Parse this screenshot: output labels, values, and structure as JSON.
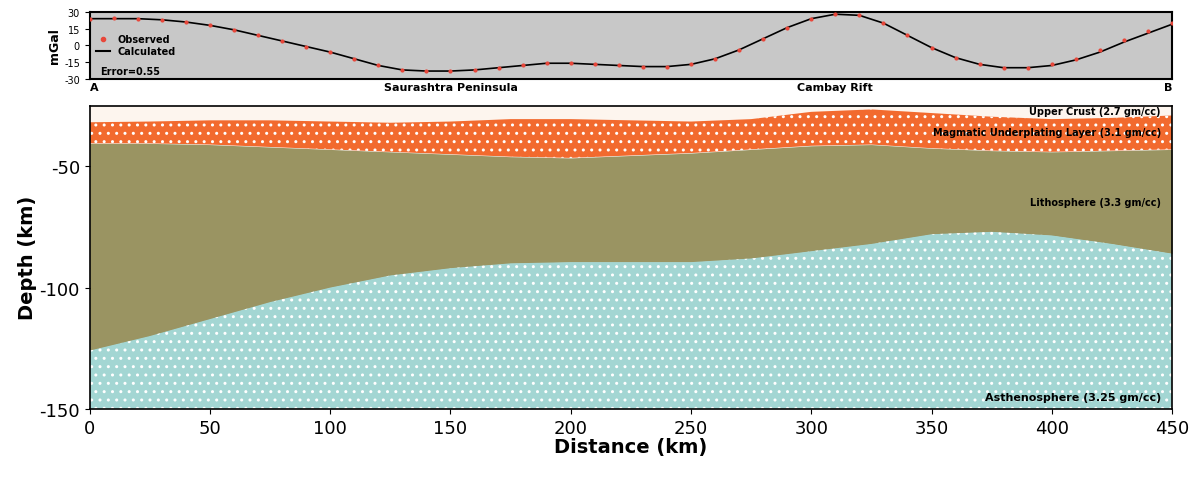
{
  "chart_data": [
    {
      "type": "line",
      "ylabel": "mGal",
      "xlim": [
        0,
        450
      ],
      "ylim": [
        -30,
        30
      ],
      "yticks": [
        -30,
        -15,
        0,
        15,
        30
      ],
      "tick_labels": "y",
      "legend": "center left",
      "x": [
        0,
        10,
        20,
        30,
        40,
        50,
        60,
        70,
        80,
        90,
        100,
        110,
        120,
        130,
        140,
        150,
        160,
        170,
        180,
        190,
        200,
        210,
        220,
        230,
        240,
        250,
        260,
        270,
        280,
        290,
        300,
        310,
        320,
        330,
        340,
        350,
        360,
        370,
        380,
        390,
        400,
        410,
        420,
        430,
        440,
        450
      ],
      "series": [
        {
          "name": "Observed",
          "type": "scatter",
          "color": "#e8473a",
          "marker": "o",
          "values": [
            24,
            24.5,
            24,
            23,
            21,
            18,
            14,
            9,
            4,
            -1,
            -6,
            -12,
            -18,
            -22,
            -23,
            -23,
            -22,
            -20,
            -18,
            -16,
            -16,
            -17,
            -18,
            -19,
            -19,
            -17,
            -12,
            -4,
            6,
            16,
            24,
            28,
            27,
            20,
            9,
            -2,
            -11,
            -17,
            -20,
            -20,
            -17,
            -12,
            -4,
            5,
            13,
            20
          ]
        },
        {
          "name": "Calculated",
          "type": "line",
          "color": "#000000",
          "line_style": "solid",
          "values": [
            24,
            24,
            24,
            23,
            21,
            18,
            14,
            9,
            4,
            -1,
            -6,
            -12,
            -18,
            -22,
            -23,
            -23,
            -22,
            -20,
            -18,
            -16,
            -16,
            -17,
            -18,
            -19,
            -19,
            -17,
            -12,
            -4,
            6,
            16,
            24,
            28,
            27,
            20,
            9,
            -2,
            -11,
            -17,
            -20,
            -20,
            -18,
            -13,
            -6,
            3,
            11,
            19
          ]
        }
      ],
      "annotations": [
        "Error=0.55"
      ],
      "profile_labels": [
        {
          "x": 0,
          "text": "A"
        },
        {
          "x": 150,
          "text": "Saurashtra Peninsula"
        },
        {
          "x": 310,
          "text": "Cambay Rift"
        },
        {
          "x": 450,
          "text": "B"
        }
      ]
    },
    {
      "type": "area",
      "xlabel": "Distance (km)",
      "ylabel": "Depth (km)",
      "xlim": [
        0,
        450
      ],
      "ylim": [
        -150,
        -25
      ],
      "xticks": [
        0,
        50,
        100,
        150,
        200,
        250,
        300,
        350,
        400,
        450
      ],
      "yticks": [
        -150,
        -100,
        -50
      ],
      "x": [
        0,
        25,
        50,
        75,
        100,
        125,
        150,
        175,
        200,
        225,
        250,
        275,
        300,
        325,
        350,
        375,
        400,
        425,
        450
      ],
      "layers": [
        {
          "name": "Upper Crust (2.7 gm/cc)",
          "color": "#fdf5ee",
          "base": [
            -31.8,
            -31.5,
            -31,
            -31,
            -31.5,
            -32,
            -31.5,
            -30.5,
            -30.5,
            -31,
            -31.5,
            -30.5,
            -27.5,
            -26.5,
            -28,
            -29.5,
            -30.5,
            -30,
            -29
          ]
        },
        {
          "name": "Magmatic Underplating Layer (3.1 gm/cc)",
          "color": "#f26a2e",
          "base": [
            -40.5,
            -40.5,
            -41,
            -42,
            -43,
            -44,
            -45,
            -46,
            -46.5,
            -45.5,
            -44.5,
            -43,
            -41.5,
            -41,
            -42.5,
            -43.5,
            -44,
            -43.5,
            -43
          ]
        },
        {
          "name": "Lithosphere (3.3 gm/cc)",
          "color": "#9a9462",
          "base": [
            -126,
            -120,
            -113,
            -106,
            -100,
            -95,
            -92,
            -90,
            -89.5,
            -89.5,
            -89.5,
            -88,
            -85,
            -82,
            -78,
            -77,
            -78.5,
            -82,
            -86
          ]
        },
        {
          "name": "Asthenosphere (3.25 gm/cc)",
          "color": "#a3d6d3"
        }
      ]
    }
  ]
}
